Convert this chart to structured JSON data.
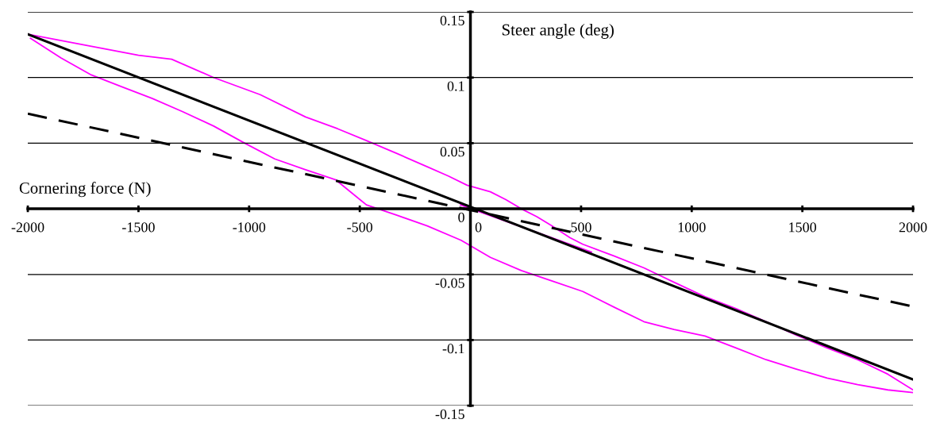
{
  "chart_data": {
    "type": "line",
    "xlabel": "Cornering force (N)",
    "ylabel": "Steer angle (deg)",
    "xlim": [
      -2000,
      2000
    ],
    "xticks": [
      -2000,
      -1500,
      -1000,
      -500,
      0,
      500,
      1000,
      1500,
      2000
    ],
    "ylim": [
      -0.15,
      0.15
    ],
    "yticks": [
      -0.15,
      -0.1,
      -0.05,
      0,
      0.05,
      0.1,
      0.15
    ],
    "grid": "y",
    "legend": false,
    "series": [
      {
        "color": "#ff00ff",
        "line_style": "solid",
        "x": [
          -2000,
          -1750,
          -1500,
          -1350,
          -1160,
          -950,
          -745,
          -600,
          -470,
          -330,
          -195,
          -100,
          -15,
          90,
          160,
          230,
          300,
          368,
          450,
          508,
          650,
          784,
          920,
          1060,
          1200,
          1336,
          1470,
          1612,
          1750,
          1886,
          2000
        ],
        "values": [
          0.133,
          0.125,
          0.117,
          0.114,
          0.1,
          0.087,
          0.07,
          0.061,
          0.052,
          0.042,
          0.032,
          0.025,
          0.018,
          0.013,
          0.007,
          0.0,
          -0.006,
          -0.013,
          -0.022,
          -0.027,
          -0.036,
          -0.045,
          -0.056,
          -0.067,
          -0.076,
          -0.086,
          -0.096,
          -0.106,
          -0.115,
          -0.126,
          -0.138
        ]
      },
      {
        "color": "#ff00ff",
        "line_style": "solid",
        "x": [
          2000,
          1886,
          1750,
          1612,
          1470,
          1336,
          1200,
          1060,
          920,
          784,
          650,
          508,
          370,
          230,
          90,
          -42,
          -195,
          -330,
          -470,
          -608,
          -750,
          -884,
          -1020,
          -1160,
          -1300,
          -1437,
          -1575,
          -1713,
          -1850,
          -1988
        ],
        "values": [
          -0.14,
          -0.138,
          -0.134,
          -0.129,
          -0.122,
          -0.115,
          -0.106,
          -0.097,
          -0.092,
          -0.086,
          -0.075,
          -0.063,
          -0.055,
          -0.047,
          -0.037,
          -0.024,
          -0.013,
          -0.005,
          0.003,
          0.022,
          0.03,
          0.038,
          0.05,
          0.063,
          0.074,
          0.084,
          0.093,
          0.102,
          0.115,
          0.13
        ]
      },
      {
        "color": "#ff00ff",
        "line_style": "solid",
        "x": [
          -45,
          547
        ],
        "values": [
          0.003,
          -0.033
        ]
      },
      {
        "color": "#000000",
        "line_style": "solid",
        "x": [
          -2000,
          2000
        ],
        "values": [
          0.133,
          -0.13
        ]
      },
      {
        "color": "#000000",
        "line_style": "dashed",
        "x": [
          -2000,
          2000
        ],
        "values": [
          0.0725,
          -0.0745
        ]
      }
    ]
  }
}
